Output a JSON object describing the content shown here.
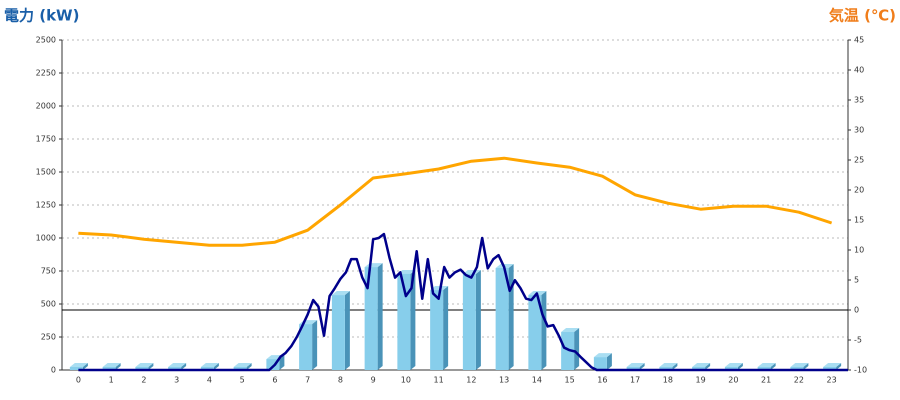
{
  "chart_data": {
    "type": "bar",
    "y_label": "電力 (kW)",
    "y2_label": "気温 (℃)",
    "categories": [
      "0",
      "1",
      "2",
      "3",
      "4",
      "5",
      "6",
      "7",
      "8",
      "9",
      "10",
      "11",
      "12",
      "13",
      "14",
      "15",
      "16",
      "17",
      "18",
      "19",
      "20",
      "21",
      "22",
      "23"
    ],
    "ylim": [
      0,
      2500
    ],
    "yticks": [
      0,
      250,
      500,
      750,
      1000,
      1250,
      1500,
      1750,
      2000,
      2250,
      2500
    ],
    "y2lim": [
      -10,
      45
    ],
    "y2ticks": [
      -10,
      -5,
      0,
      5,
      10,
      15,
      20,
      25,
      30,
      35,
      40,
      45
    ],
    "grid": true,
    "series": [
      {
        "type": "bar",
        "color": "#87ceeb",
        "values": [
          0,
          0,
          0,
          0,
          0,
          0,
          60,
          325,
          545,
          757,
          705,
          583,
          705,
          750,
          545,
          265,
          75,
          0,
          0,
          0,
          0,
          0,
          0,
          0
        ]
      },
      {
        "type": "line",
        "axis": "y2",
        "color": "#ffa500",
        "values": [
          12.8,
          12.5,
          11.8,
          11.3,
          10.8,
          10.8,
          11.3,
          13.3,
          17.5,
          22,
          22.7,
          23.5,
          24.8,
          25.3,
          24.5,
          23.8,
          22.3,
          19.2,
          17.8,
          16.8,
          17.3,
          17.3,
          16.3,
          14.5
        ]
      },
      {
        "type": "line",
        "color": "#00008b",
        "x": [
          0,
          5.83,
          6,
          6.17,
          6.33,
          6.5,
          6.67,
          6.83,
          7,
          7.17,
          7.33,
          7.5,
          7.67,
          7.83,
          8,
          8.17,
          8.33,
          8.5,
          8.67,
          8.83,
          9,
          9.17,
          9.33,
          9.5,
          9.67,
          9.83,
          10,
          10.17,
          10.33,
          10.5,
          10.67,
          10.83,
          11,
          11.17,
          11.33,
          11.5,
          11.67,
          11.83,
          12,
          12.17,
          12.33,
          12.5,
          12.67,
          12.83,
          13,
          13.17,
          13.33,
          13.5,
          13.67,
          13.83,
          14,
          14.17,
          14.33,
          14.5,
          14.67,
          14.83,
          15,
          15.17,
          15.33,
          15.5,
          15.67,
          15.83,
          23.5
        ],
        "values": [
          0,
          0,
          40,
          100,
          130,
          180,
          250,
          330,
          420,
          530,
          480,
          260,
          560,
          620,
          690,
          740,
          840,
          840,
          700,
          620,
          990,
          1000,
          1030,
          850,
          700,
          740,
          560,
          620,
          900,
          540,
          840,
          580,
          540,
          780,
          700,
          740,
          760,
          720,
          700,
          780,
          1000,
          770,
          840,
          870,
          780,
          600,
          680,
          620,
          540,
          530,
          580,
          420,
          330,
          340,
          260,
          170,
          150,
          140,
          100,
          60,
          20,
          0,
          0
        ]
      }
    ]
  }
}
